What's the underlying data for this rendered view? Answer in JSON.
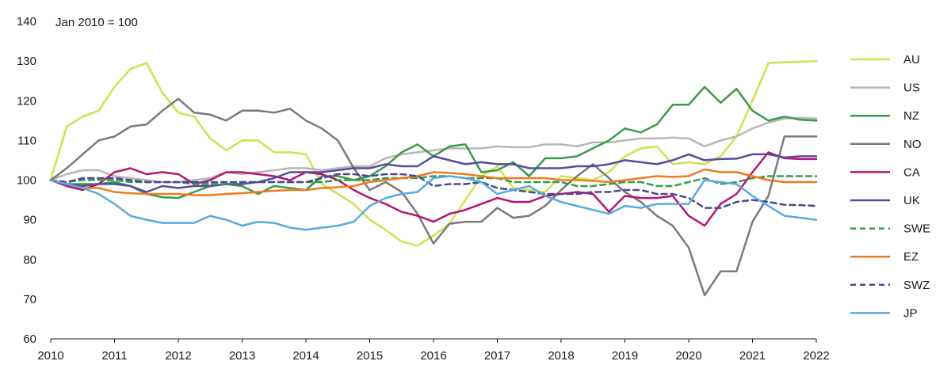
{
  "chart_data": {
    "type": "line",
    "title": "",
    "xlabel": "",
    "ylabel": "",
    "note": "Jan 2010 = 100",
    "xlim": [
      2010,
      2022
    ],
    "ylim": [
      60,
      140
    ],
    "x_ticks": [
      2010,
      2011,
      2012,
      2013,
      2014,
      2015,
      2016,
      2017,
      2018,
      2019,
      2020,
      2021,
      2022
    ],
    "y_ticks": [
      60,
      70,
      80,
      90,
      100,
      110,
      120,
      130,
      140
    ],
    "grid": false,
    "legend_position": "right",
    "x": [
      2010.0,
      2010.25,
      2010.5,
      2010.75,
      2011.0,
      2011.25,
      2011.5,
      2011.75,
      2012.0,
      2012.25,
      2012.5,
      2012.75,
      2013.0,
      2013.25,
      2013.5,
      2013.75,
      2014.0,
      2014.25,
      2014.5,
      2014.75,
      2015.0,
      2015.25,
      2015.5,
      2015.75,
      2016.0,
      2016.25,
      2016.5,
      2016.75,
      2017.0,
      2017.25,
      2017.5,
      2017.75,
      2018.0,
      2018.25,
      2018.5,
      2018.75,
      2019.0,
      2019.25,
      2019.5,
      2019.75,
      2020.0,
      2020.25,
      2020.5,
      2020.75,
      2021.0,
      2021.25,
      2021.5,
      2021.75,
      2022.0
    ],
    "series": [
      {
        "name": "AU",
        "color": "#d4df4f",
        "dash": "",
        "values": [
          100,
          113.5,
          116,
          117.5,
          123.5,
          128,
          129.5,
          122,
          117,
          116,
          110.5,
          107.5,
          110,
          110,
          107,
          107,
          106.5,
          99,
          96.5,
          94,
          90,
          87.5,
          84.5,
          83.5,
          86,
          89,
          95,
          101,
          103.5,
          98,
          97.5,
          97,
          101,
          100.5,
          100,
          102,
          106,
          108,
          108.5,
          104,
          104.5,
          104,
          106,
          111,
          120,
          129.5,
          129.7,
          129.8,
          130
        ]
      },
      {
        "name": "US",
        "color": "#b7b7b7",
        "dash": "",
        "values": [
          100,
          101.5,
          102.5,
          102.5,
          101,
          100.5,
          100,
          99.5,
          99.5,
          100,
          100.5,
          102,
          101.5,
          102,
          102.5,
          103,
          103,
          102.5,
          103,
          103.5,
          103.5,
          105.5,
          106.5,
          107,
          107.5,
          108,
          108,
          108,
          108.5,
          108.3,
          108.3,
          109,
          109,
          108.5,
          109.5,
          109.5,
          110,
          110.5,
          110.5,
          110.7,
          110.5,
          108.5,
          110,
          111,
          113,
          114.5,
          115.5,
          115.7,
          115.5
        ]
      },
      {
        "name": "NZ",
        "color": "#3a9a4a",
        "dash": "",
        "values": [
          100,
          99,
          99,
          99,
          99.5,
          98.5,
          96.5,
          95.7,
          95.5,
          97,
          98.5,
          99,
          98.5,
          96.5,
          98.5,
          98,
          97.5,
          101,
          101,
          100,
          101,
          103.5,
          107,
          109,
          106,
          108.5,
          109,
          102,
          102.5,
          104.5,
          101,
          105.5,
          105.5,
          106,
          108,
          110,
          113,
          112,
          114,
          119,
          119,
          123.5,
          119.5,
          123,
          117.5,
          115,
          116,
          115.2,
          115
        ]
      },
      {
        "name": "NO",
        "color": "#7a7a7a",
        "dash": "",
        "values": [
          100,
          103,
          106.5,
          110,
          111,
          113.5,
          114,
          117.5,
          120.5,
          117,
          116.5,
          115,
          117.5,
          117.5,
          117,
          118,
          115,
          113,
          110,
          103,
          97.5,
          99.5,
          97,
          91.5,
          84,
          89,
          89.5,
          89.5,
          93,
          90.5,
          91,
          93.5,
          97.5,
          101,
          104,
          100.5,
          97,
          94.5,
          91,
          88.5,
          83,
          71,
          77,
          77,
          89.5,
          96,
          111,
          111,
          111
        ]
      },
      {
        "name": "CA",
        "color": "#b51575",
        "dash": "",
        "values": [
          100,
          98.5,
          97.5,
          99,
          102,
          103,
          101.5,
          102,
          101.5,
          99,
          100,
          102,
          102,
          101.5,
          101,
          100,
          102,
          101.5,
          100,
          97.5,
          95.5,
          94,
          92,
          91,
          89.5,
          91.5,
          92.5,
          94,
          95.5,
          94.5,
          94.5,
          96,
          96.5,
          97,
          96.5,
          92,
          96,
          95.5,
          95.5,
          96,
          91,
          88.5,
          94,
          96.5,
          102,
          107,
          105.5,
          105.3,
          105.3
        ]
      },
      {
        "name": "UK",
        "color": "#5a4a9e",
        "dash": "",
        "values": [
          100,
          99,
          98.5,
          99,
          99,
          98.5,
          97,
          98.5,
          98,
          98.5,
          98.5,
          99,
          99,
          99.5,
          100.5,
          102,
          102,
          102,
          102.5,
          103,
          103,
          104,
          103.5,
          103.5,
          106,
          105,
          104,
          104.5,
          104,
          104,
          103,
          103,
          103,
          103.5,
          103.5,
          104,
          105,
          104.5,
          104,
          105,
          106.5,
          105,
          105.3,
          105.4,
          106.5,
          106.5,
          105.7,
          106,
          106
        ]
      },
      {
        "name": "SWE",
        "color": "#3a9a4a",
        "dash": "7,5",
        "values": [
          100,
          99.5,
          100,
          100,
          100,
          99.5,
          99.5,
          99.5,
          99.5,
          99,
          99,
          99,
          99.5,
          99.5,
          99.5,
          99.5,
          99.5,
          99.5,
          100,
          100,
          100,
          100.5,
          100.5,
          100.5,
          101,
          101,
          100.5,
          100.5,
          100.5,
          99.5,
          99.5,
          99.5,
          99.5,
          98.5,
          98.5,
          99,
          99.5,
          99.5,
          98.5,
          98.5,
          99.5,
          100.5,
          99,
          99.5,
          100.5,
          101,
          101,
          101,
          101
        ]
      },
      {
        "name": "EZ",
        "color": "#f07a1e",
        "dash": "",
        "values": [
          100,
          99,
          98,
          98,
          97,
          96.7,
          96.5,
          96.5,
          96.5,
          96.2,
          96.2,
          96.5,
          96.7,
          97,
          97.3,
          97.5,
          97.5,
          98,
          98.2,
          98.5,
          99.5,
          100,
          100.5,
          101,
          102,
          101.8,
          101.5,
          101,
          100.5,
          100.5,
          100.5,
          100.5,
          100,
          100,
          99.8,
          99.5,
          100,
          100.5,
          101,
          100.8,
          101,
          102.7,
          102,
          102,
          101,
          100,
          99.5,
          99.5,
          99.5
        ]
      },
      {
        "name": "SWZ",
        "color": "#4a4a8e",
        "dash": "7,5",
        "values": [
          100,
          99.5,
          100.5,
          100.5,
          100.5,
          100,
          99.5,
          99.5,
          99.5,
          99.5,
          99.5,
          99.5,
          99.5,
          99.5,
          99.5,
          99.5,
          99.5,
          100.5,
          101.5,
          101.5,
          101,
          101.5,
          101.5,
          101,
          98.5,
          99,
          99,
          99.5,
          98,
          97.5,
          97,
          96.5,
          96.5,
          96.5,
          97,
          97,
          97.5,
          97.5,
          96.5,
          96.5,
          95.5,
          93,
          93,
          94.5,
          95,
          94.5,
          93.8,
          93.7,
          93.5
        ]
      },
      {
        "name": "JP",
        "color": "#5aa9de",
        "dash": "",
        "values": [
          100,
          99,
          98,
          96.5,
          94,
          91,
          90,
          89.2,
          89.2,
          89.2,
          91,
          90,
          88.5,
          89.5,
          89.2,
          88,
          87.5,
          88,
          88.5,
          89.5,
          93.5,
          95.5,
          96.5,
          97,
          100.5,
          101,
          100.5,
          99.5,
          96.5,
          97.5,
          98.5,
          96,
          94.5,
          93.5,
          92.5,
          91.5,
          93.5,
          93,
          94,
          94,
          94,
          100,
          99.5,
          99,
          96,
          93.5,
          91,
          90.5,
          90
        ]
      }
    ]
  }
}
